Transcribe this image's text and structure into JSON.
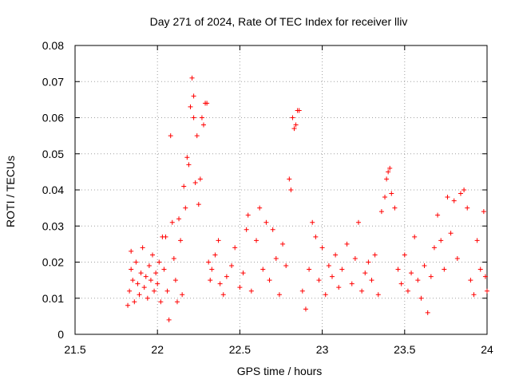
{
  "chart_data": {
    "type": "scatter",
    "title": "Day 271 of 2024, Rate Of TEC Index for receiver lliv",
    "xlabel": "GPS time / hours",
    "ylabel": "ROTI / TECUs",
    "xlim": [
      21.5,
      24
    ],
    "ylim": [
      0,
      0.08
    ],
    "xticks": [
      21.5,
      22,
      22.5,
      23,
      23.5,
      24
    ],
    "xtick_labels": [
      "21.5",
      "22",
      "22.5",
      "23",
      "23.5",
      "24"
    ],
    "yticks": [
      0,
      0.01,
      0.02,
      0.03,
      0.04,
      0.05,
      0.06,
      0.07,
      0.08
    ],
    "ytick_labels": [
      "0",
      "0.01",
      "0.02",
      "0.03",
      "0.04",
      "0.05",
      "0.06",
      "0.07",
      "0.08"
    ],
    "grid": true,
    "marker": "+",
    "series_color": "#ff0000",
    "series": [
      {
        "name": "ROTI",
        "points": [
          [
            21.82,
            0.008
          ],
          [
            21.83,
            0.012
          ],
          [
            21.84,
            0.018
          ],
          [
            21.84,
            0.023
          ],
          [
            21.85,
            0.015
          ],
          [
            21.86,
            0.009
          ],
          [
            21.87,
            0.02
          ],
          [
            21.88,
            0.014
          ],
          [
            21.89,
            0.011
          ],
          [
            21.9,
            0.017
          ],
          [
            21.91,
            0.024
          ],
          [
            21.92,
            0.013
          ],
          [
            21.93,
            0.016
          ],
          [
            21.94,
            0.01
          ],
          [
            21.95,
            0.019
          ],
          [
            21.96,
            0.015
          ],
          [
            21.97,
            0.022
          ],
          [
            21.98,
            0.012
          ],
          [
            21.99,
            0.017
          ],
          [
            22.0,
            0.014
          ],
          [
            22.01,
            0.02
          ],
          [
            22.02,
            0.009
          ],
          [
            22.03,
            0.027
          ],
          [
            22.04,
            0.018
          ],
          [
            22.05,
            0.027
          ],
          [
            22.06,
            0.012
          ],
          [
            22.07,
            0.004
          ],
          [
            22.08,
            0.055
          ],
          [
            22.09,
            0.031
          ],
          [
            22.1,
            0.021
          ],
          [
            22.11,
            0.015
          ],
          [
            22.12,
            0.009
          ],
          [
            22.13,
            0.032
          ],
          [
            22.14,
            0.026
          ],
          [
            22.15,
            0.011
          ],
          [
            22.16,
            0.041
          ],
          [
            22.17,
            0.035
          ],
          [
            22.18,
            0.049
          ],
          [
            22.19,
            0.047
          ],
          [
            22.2,
            0.063
          ],
          [
            22.21,
            0.071
          ],
          [
            22.22,
            0.066
          ],
          [
            22.22,
            0.06
          ],
          [
            22.23,
            0.042
          ],
          [
            22.24,
            0.055
          ],
          [
            22.25,
            0.036
          ],
          [
            22.26,
            0.043
          ],
          [
            22.27,
            0.06
          ],
          [
            22.28,
            0.058
          ],
          [
            22.29,
            0.064
          ],
          [
            22.3,
            0.064
          ],
          [
            22.31,
            0.02
          ],
          [
            22.32,
            0.015
          ],
          [
            22.33,
            0.018
          ],
          [
            22.35,
            0.022
          ],
          [
            22.37,
            0.026
          ],
          [
            22.38,
            0.014
          ],
          [
            22.4,
            0.011
          ],
          [
            22.42,
            0.016
          ],
          [
            22.45,
            0.019
          ],
          [
            22.47,
            0.024
          ],
          [
            22.5,
            0.013
          ],
          [
            22.52,
            0.017
          ],
          [
            22.54,
            0.029
          ],
          [
            22.55,
            0.033
          ],
          [
            22.57,
            0.012
          ],
          [
            22.6,
            0.026
          ],
          [
            22.62,
            0.035
          ],
          [
            22.64,
            0.018
          ],
          [
            22.66,
            0.031
          ],
          [
            22.68,
            0.015
          ],
          [
            22.7,
            0.029
          ],
          [
            22.72,
            0.021
          ],
          [
            22.74,
            0.011
          ],
          [
            22.76,
            0.025
          ],
          [
            22.78,
            0.019
          ],
          [
            22.8,
            0.043
          ],
          [
            22.81,
            0.04
          ],
          [
            22.82,
            0.06
          ],
          [
            22.83,
            0.057
          ],
          [
            22.84,
            0.058
          ],
          [
            22.85,
            0.062
          ],
          [
            22.86,
            0.062
          ],
          [
            22.88,
            0.012
          ],
          [
            22.9,
            0.007
          ],
          [
            22.92,
            0.018
          ],
          [
            22.94,
            0.031
          ],
          [
            22.96,
            0.027
          ],
          [
            22.98,
            0.015
          ],
          [
            23.0,
            0.024
          ],
          [
            23.02,
            0.011
          ],
          [
            23.04,
            0.019
          ],
          [
            23.06,
            0.016
          ],
          [
            23.08,
            0.022
          ],
          [
            23.1,
            0.013
          ],
          [
            23.12,
            0.018
          ],
          [
            23.15,
            0.025
          ],
          [
            23.18,
            0.014
          ],
          [
            23.2,
            0.021
          ],
          [
            23.22,
            0.031
          ],
          [
            23.24,
            0.012
          ],
          [
            23.26,
            0.017
          ],
          [
            23.28,
            0.02
          ],
          [
            23.3,
            0.015
          ],
          [
            23.32,
            0.022
          ],
          [
            23.34,
            0.011
          ],
          [
            23.36,
            0.034
          ],
          [
            23.38,
            0.038
          ],
          [
            23.39,
            0.043
          ],
          [
            23.4,
            0.045
          ],
          [
            23.41,
            0.046
          ],
          [
            23.42,
            0.039
          ],
          [
            23.44,
            0.035
          ],
          [
            23.46,
            0.018
          ],
          [
            23.48,
            0.014
          ],
          [
            23.5,
            0.022
          ],
          [
            23.52,
            0.012
          ],
          [
            23.54,
            0.017
          ],
          [
            23.56,
            0.027
          ],
          [
            23.58,
            0.015
          ],
          [
            23.6,
            0.01
          ],
          [
            23.62,
            0.019
          ],
          [
            23.64,
            0.006
          ],
          [
            23.66,
            0.016
          ],
          [
            23.68,
            0.024
          ],
          [
            23.7,
            0.033
          ],
          [
            23.72,
            0.026
          ],
          [
            23.74,
            0.018
          ],
          [
            23.76,
            0.038
          ],
          [
            23.78,
            0.028
          ],
          [
            23.8,
            0.037
          ],
          [
            23.82,
            0.021
          ],
          [
            23.84,
            0.039
          ],
          [
            23.86,
            0.04
          ],
          [
            23.88,
            0.035
          ],
          [
            23.9,
            0.015
          ],
          [
            23.92,
            0.011
          ],
          [
            23.94,
            0.026
          ],
          [
            23.96,
            0.018
          ],
          [
            23.98,
            0.034
          ],
          [
            23.99,
            0.016
          ],
          [
            24.0,
            0.012
          ]
        ]
      }
    ]
  }
}
